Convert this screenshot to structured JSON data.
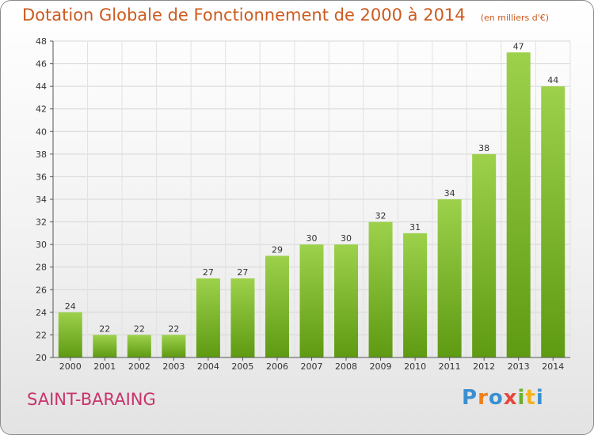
{
  "header": {
    "title": "Dotation Globale de Fonctionnement de 2000 à 2014",
    "subtitle": "(en milliers d'€)"
  },
  "footer": {
    "commune": "SAINT-BARAING",
    "logo_letters": [
      "P",
      "r",
      "o",
      "x",
      "i",
      "t",
      "i"
    ]
  },
  "colors": {
    "title": "#cc5a1e",
    "commune": "#c8336b",
    "bar_top": "#9dd14b",
    "bar_bottom": "#5e9a12",
    "logo": [
      "#3a8fd1",
      "#f07f1a",
      "#3a8fd1",
      "#e8473c",
      "#6ab02d",
      "#f2b31c",
      "#3a8fd1"
    ]
  },
  "chart_data": {
    "type": "bar",
    "title": "Dotation Globale de Fonctionnement de 2000 à 2014",
    "subtitle": "(en milliers d'€)",
    "categories": [
      "2000",
      "2001",
      "2002",
      "2003",
      "2004",
      "2005",
      "2006",
      "2007",
      "2008",
      "2009",
      "2010",
      "2011",
      "2012",
      "2013",
      "2014"
    ],
    "values": [
      24,
      22,
      22,
      22,
      27,
      27,
      29,
      30,
      30,
      32,
      31,
      34,
      38,
      47,
      44
    ],
    "ylim": [
      20,
      48
    ],
    "yticks": [
      20,
      22,
      24,
      26,
      28,
      30,
      32,
      34,
      36,
      38,
      40,
      42,
      44,
      46,
      48
    ],
    "grid": true,
    "legend": "none"
  }
}
